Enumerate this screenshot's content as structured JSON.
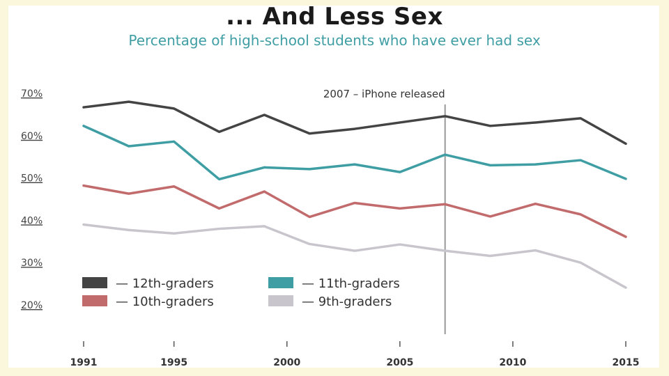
{
  "chart_data": {
    "type": "line",
    "title": "... And Less Sex",
    "subtitle": "Percentage of high-school students who have ever had sex",
    "x": [
      1991,
      1993,
      1995,
      1997,
      1999,
      2001,
      2003,
      2005,
      2007,
      2009,
      2011,
      2013,
      2015
    ],
    "xticks": [
      "1991",
      "1995",
      "2000",
      "2005",
      "2010",
      "2015"
    ],
    "yticks": [
      "70%",
      "60%",
      "50%",
      "40%",
      "30%",
      "20%"
    ],
    "ylim": [
      20,
      70
    ],
    "legend_position": "bottom-left",
    "series": [
      {
        "name": "— 12th-graders",
        "color": "#444444",
        "values": [
          66.7,
          68.0,
          66.4,
          60.9,
          64.9,
          60.5,
          61.6,
          63.1,
          64.6,
          62.3,
          63.1,
          64.1,
          58.1
        ]
      },
      {
        "name": "— 11th-graders",
        "color": "#3f9ea4",
        "values": [
          62.3,
          57.5,
          58.6,
          49.7,
          52.5,
          52.1,
          53.2,
          51.4,
          55.5,
          53.0,
          53.2,
          54.2,
          49.8
        ]
      },
      {
        "name": "— 10th-graders",
        "color": "#c26b6c",
        "values": [
          48.2,
          46.3,
          48.0,
          42.8,
          46.8,
          40.8,
          44.1,
          42.8,
          43.8,
          40.9,
          43.9,
          41.4,
          36.1
        ]
      },
      {
        "name": "— 9th-graders",
        "color": "#c8c6cc",
        "values": [
          39.0,
          37.7,
          36.9,
          38.0,
          38.6,
          34.4,
          32.8,
          34.3,
          32.8,
          31.6,
          32.9,
          30.0,
          24.1
        ]
      }
    ],
    "annotation": {
      "x": 2007,
      "label": "2007 – iPhone released"
    }
  }
}
